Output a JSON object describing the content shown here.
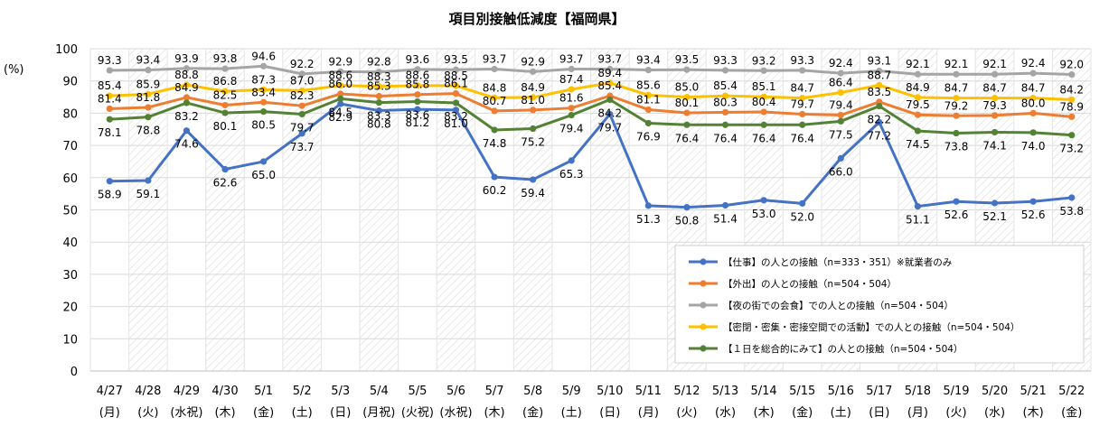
{
  "chart_data": {
    "type": "line",
    "title": "項目別接触低減度【福岡県】",
    "ylabel": "(%)",
    "ylim": [
      0,
      100
    ],
    "yticks": [
      0,
      10,
      20,
      30,
      40,
      50,
      60,
      70,
      80,
      90,
      100
    ],
    "grid": true,
    "legend_position": "bottom-right",
    "categories": [
      {
        "date": "4/27",
        "day": "(月)"
      },
      {
        "date": "4/28",
        "day": "(火)"
      },
      {
        "date": "4/29",
        "day": "(水祝)"
      },
      {
        "date": "4/30",
        "day": "(木)"
      },
      {
        "date": "5/1",
        "day": "(金)"
      },
      {
        "date": "5/2",
        "day": "(土)"
      },
      {
        "date": "5/3",
        "day": "(日)"
      },
      {
        "date": "5/4",
        "day": "(月祝)"
      },
      {
        "date": "5/5",
        "day": "(火祝)"
      },
      {
        "date": "5/6",
        "day": "(水祝)"
      },
      {
        "date": "5/7",
        "day": "(木)"
      },
      {
        "date": "5/8",
        "day": "(金)"
      },
      {
        "date": "5/9",
        "day": "(土)"
      },
      {
        "date": "5/10",
        "day": "(日)"
      },
      {
        "date": "5/11",
        "day": "(月)"
      },
      {
        "date": "5/12",
        "day": "(火)"
      },
      {
        "date": "5/13",
        "day": "(水)"
      },
      {
        "date": "5/14",
        "day": "(木)"
      },
      {
        "date": "5/15",
        "day": "(金)"
      },
      {
        "date": "5/16",
        "day": "(土)"
      },
      {
        "date": "5/17",
        "day": "(日)"
      },
      {
        "date": "5/18",
        "day": "(月)"
      },
      {
        "date": "5/19",
        "day": "(火)"
      },
      {
        "date": "5/20",
        "day": "(水)"
      },
      {
        "date": "5/21",
        "day": "(木)"
      },
      {
        "date": "5/22",
        "day": "(金)"
      }
    ],
    "series": [
      {
        "name": "【仕事】の人との接触（n=333・351）※就業者のみ",
        "color": "#4472C4",
        "values": [
          58.9,
          59.1,
          74.6,
          62.6,
          65.0,
          73.7,
          82.9,
          80.8,
          81.2,
          81.0,
          60.2,
          59.4,
          65.3,
          79.7,
          51.3,
          50.8,
          51.4,
          53.0,
          52.0,
          66.0,
          77.2,
          51.1,
          52.6,
          52.1,
          52.6,
          53.8
        ]
      },
      {
        "name": "【外出】の人との接触（n=504・504）",
        "color": "#ED7D31",
        "values": [
          81.4,
          81.8,
          84.9,
          82.5,
          83.4,
          82.3,
          86.0,
          85.3,
          85.8,
          86.1,
          80.7,
          81.0,
          81.6,
          85.4,
          81.1,
          80.1,
          80.3,
          80.4,
          79.7,
          79.4,
          83.5,
          79.5,
          79.2,
          79.3,
          80.0,
          78.9
        ]
      },
      {
        "name": "【夜の街での会食】での人との接触（n=504・504）",
        "color": "#A5A5A5",
        "values": [
          93.3,
          93.4,
          93.9,
          93.8,
          94.6,
          92.2,
          92.9,
          92.8,
          93.6,
          93.5,
          93.7,
          92.9,
          93.7,
          93.7,
          93.4,
          93.5,
          93.3,
          93.2,
          93.3,
          92.4,
          93.1,
          92.1,
          92.1,
          92.1,
          92.4,
          92.0
        ]
      },
      {
        "name": "【密閉・密集・密接空間での活動】での人との接触（n=504・504）",
        "color": "#FFC000",
        "values": [
          85.4,
          85.9,
          88.8,
          86.8,
          87.3,
          87.0,
          88.6,
          88.3,
          88.6,
          88.5,
          84.8,
          84.9,
          87.4,
          89.4,
          85.6,
          85.0,
          85.4,
          85.1,
          84.7,
          86.4,
          88.7,
          84.9,
          84.7,
          84.7,
          84.7,
          84.2
        ]
      },
      {
        "name": "【１日を総合的にみて】の人との接触（n=504・504）",
        "color": "#548235",
        "values": [
          78.1,
          78.8,
          83.2,
          80.1,
          80.5,
          79.7,
          84.5,
          83.3,
          83.6,
          83.2,
          74.8,
          75.2,
          79.4,
          84.2,
          76.9,
          76.4,
          76.4,
          76.4,
          76.4,
          77.5,
          82.2,
          74.5,
          73.8,
          74.1,
          74.0,
          73.2
        ]
      }
    ]
  }
}
